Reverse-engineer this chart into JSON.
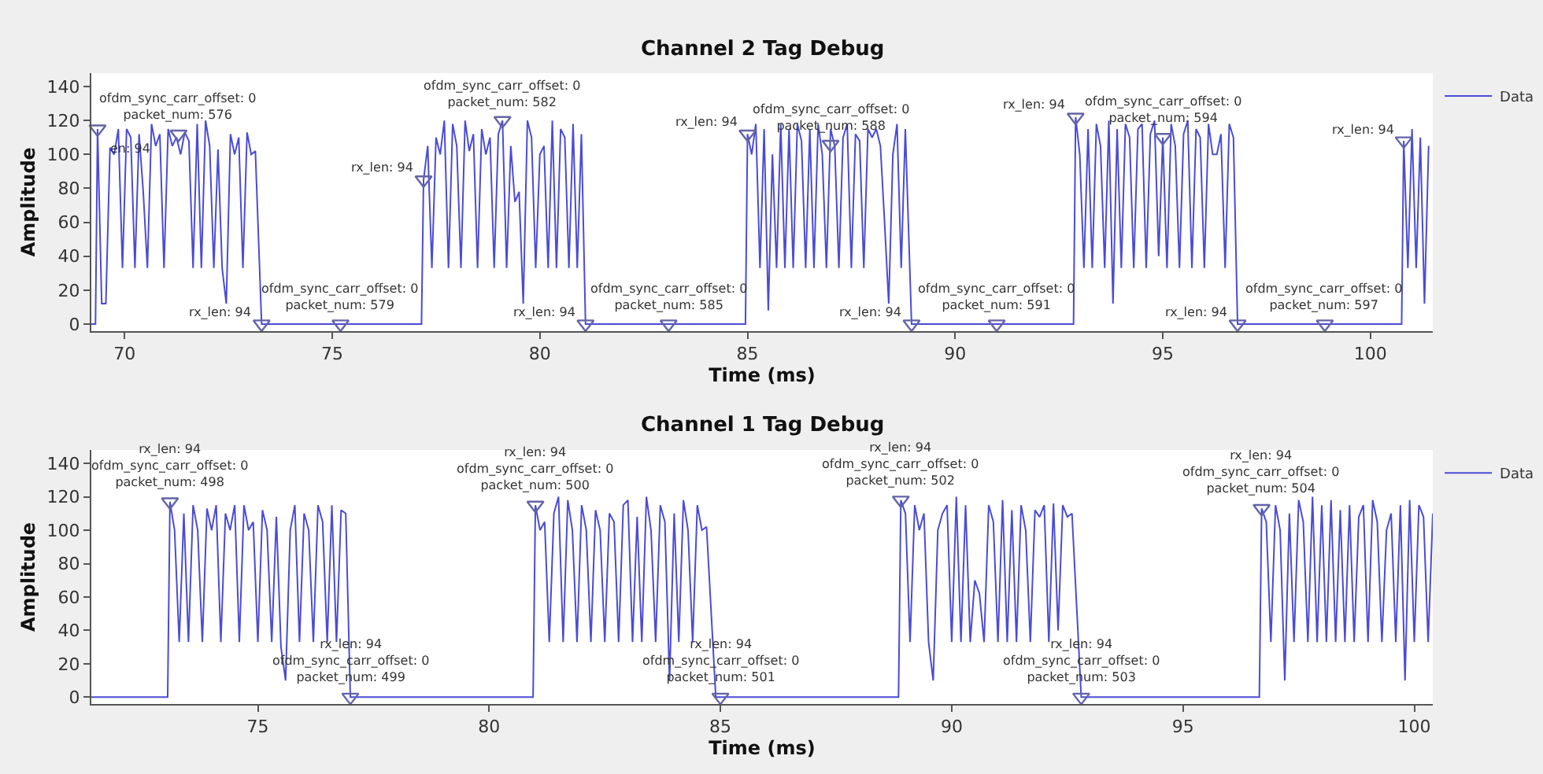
{
  "chart_data": [
    {
      "type": "line",
      "title": "Channel 2 Tag Debug",
      "xlabel": "Time (ms)",
      "ylabel": "Amplitude",
      "legend": "top right",
      "xlim": [
        69.2,
        101.5
      ],
      "xticks": [
        70,
        75,
        80,
        85,
        90,
        95,
        100
      ],
      "ylim": [
        -4,
        148
      ],
      "yticks": [
        0,
        20,
        40,
        60,
        80,
        100,
        120,
        140
      ],
      "series": [
        {
          "name": "Data",
          "color": "#4b4bd6",
          "x": [
            69.2,
            69.3,
            69.35,
            69.45,
            69.55,
            69.65,
            69.75,
            69.85,
            69.95,
            70.05,
            70.15,
            70.25,
            70.35,
            70.45,
            70.55,
            70.65,
            70.75,
            70.85,
            70.95,
            71.05,
            71.15,
            71.25,
            71.35,
            71.45,
            71.55,
            71.65,
            71.75,
            71.85,
            71.95,
            72.05,
            72.15,
            72.25,
            72.35,
            72.45,
            72.55,
            72.65,
            72.75,
            72.85,
            72.95,
            73.05,
            73.15,
            73.3,
            77.15,
            77.2,
            77.3,
            77.4,
            77.5,
            77.6,
            77.7,
            77.8,
            77.9,
            78.0,
            78.1,
            78.2,
            78.3,
            78.4,
            78.5,
            78.6,
            78.7,
            78.8,
            78.9,
            79.0,
            79.1,
            79.2,
            79.3,
            79.4,
            79.5,
            79.6,
            79.7,
            79.8,
            79.9,
            80.0,
            80.1,
            80.2,
            80.3,
            80.4,
            80.5,
            80.6,
            80.7,
            80.8,
            80.9,
            81.0,
            81.1,
            84.95,
            85.0,
            85.1,
            85.2,
            85.3,
            85.4,
            85.5,
            85.6,
            85.7,
            85.8,
            85.9,
            86.0,
            86.1,
            86.2,
            86.3,
            86.4,
            86.5,
            86.6,
            86.7,
            86.8,
            86.9,
            87.0,
            87.1,
            87.2,
            87.3,
            87.4,
            87.5,
            87.6,
            87.7,
            87.8,
            87.9,
            88.0,
            88.1,
            88.2,
            88.3,
            88.4,
            88.5,
            88.6,
            88.7,
            88.8,
            88.95,
            92.85,
            92.9,
            93.0,
            93.1,
            93.2,
            93.3,
            93.4,
            93.5,
            93.6,
            93.7,
            93.8,
            93.9,
            94.0,
            94.1,
            94.2,
            94.3,
            94.4,
            94.5,
            94.6,
            94.7,
            94.8,
            94.9,
            95.0,
            95.1,
            95.2,
            95.3,
            95.4,
            95.5,
            95.6,
            95.7,
            95.8,
            95.9,
            96.0,
            96.1,
            96.2,
            96.3,
            96.4,
            96.5,
            96.6,
            96.7,
            96.8,
            100.75,
            100.8,
            100.9,
            101.0,
            101.1,
            101.2,
            101.3,
            101.4
          ],
          "values": [
            0,
            0,
            115,
            12,
            12,
            104,
            100,
            115,
            33,
            115,
            110,
            33,
            112,
            78,
            33,
            118,
            105,
            112,
            33,
            115,
            105,
            110,
            100,
            113,
            108,
            33,
            118,
            33,
            120,
            105,
            33,
            103,
            33,
            12,
            112,
            100,
            110,
            33,
            113,
            100,
            102,
            0,
            0,
            85,
            105,
            33,
            110,
            100,
            120,
            33,
            118,
            105,
            33,
            120,
            102,
            112,
            33,
            115,
            100,
            110,
            33,
            112,
            120,
            33,
            105,
            72,
            78,
            12,
            120,
            110,
            33,
            100,
            105,
            33,
            120,
            33,
            115,
            110,
            33,
            118,
            33,
            112,
            0,
            0,
            112,
            100,
            118,
            33,
            115,
            8,
            100,
            33,
            118,
            33,
            115,
            33,
            118,
            108,
            33,
            115,
            33,
            118,
            100,
            33,
            115,
            105,
            33,
            110,
            118,
            33,
            112,
            108,
            33,
            115,
            110,
            115,
            105,
            60,
            12,
            100,
            118,
            33,
            115,
            0,
            0,
            122,
            100,
            33,
            115,
            33,
            118,
            105,
            33,
            120,
            12,
            115,
            33,
            118,
            110,
            33,
            115,
            118,
            33,
            112,
            120,
            40,
            110,
            33,
            118,
            105,
            33,
            112,
            120,
            33,
            115,
            110,
            33,
            118,
            100,
            100,
            112,
            33,
            118,
            110,
            0,
            0,
            108,
            33,
            115,
            33,
            110,
            12,
            105
          ]
        },
        {
          "type": "scatter",
          "marker": "triangle",
          "color": "#6464a8",
          "x": [
            69.35,
            71.3,
            73.3,
            75.2,
            77.2,
            79.1,
            81.1,
            83.1,
            85.0,
            87.0,
            88.95,
            91.0,
            92.9,
            95.0,
            96.8,
            98.9,
            100.8
          ],
          "values": [
            115,
            112,
            0,
            0,
            85,
            120,
            0,
            0,
            112,
            106,
            0,
            0,
            122,
            110,
            0,
            0,
            108
          ]
        }
      ],
      "annotations": [
        {
          "text": "en: 94",
          "x": 69.35,
          "y": 115
        },
        {
          "text": "ofdm_sync_carr_offset: 0\npacket_num: 576",
          "x": 71.3,
          "y": 112
        },
        {
          "text": "rx_len: 94",
          "x": 73.3,
          "y": 0
        },
        {
          "text": "ofdm_sync_carr_offset: 0\npacket_num: 579",
          "x": 75.2,
          "y": 0
        },
        {
          "text": "rx_len: 94",
          "x": 77.2,
          "y": 85
        },
        {
          "text": "ofdm_sync_carr_offset: 0\npacket_num: 582",
          "x": 79.1,
          "y": 120
        },
        {
          "text": "rx_len: 94",
          "x": 81.1,
          "y": 0
        },
        {
          "text": "ofdm_sync_carr_offset: 0\npacket_num: 585",
          "x": 83.1,
          "y": 0
        },
        {
          "text": "rx_len: 94",
          "x": 85.0,
          "y": 112
        },
        {
          "text": "ofdm_sync_carr_offset: 0\npacket_num: 588",
          "x": 87.0,
          "y": 106
        },
        {
          "text": "rx_len: 94",
          "x": 88.95,
          "y": 0
        },
        {
          "text": "ofdm_sync_carr_offset: 0\npacket_num: 591",
          "x": 91.0,
          "y": 0
        },
        {
          "text": "rx_len: 94",
          "x": 92.9,
          "y": 122
        },
        {
          "text": "ofdm_sync_carr_offset: 0\npacket_num: 594",
          "x": 95.0,
          "y": 110
        },
        {
          "text": "rx_len: 94",
          "x": 96.8,
          "y": 0
        },
        {
          "text": "ofdm_sync_carr_offset: 0\npacket_num: 597",
          "x": 98.9,
          "y": 0
        },
        {
          "text": "rx_len: 94",
          "x": 100.8,
          "y": 108
        }
      ]
    },
    {
      "type": "line",
      "title": "Channel 1 Tag Debug",
      "xlabel": "Time (ms)",
      "ylabel": "Amplitude",
      "legend": "top right",
      "xlim": [
        71.4,
        100.4
      ],
      "xticks": [
        75,
        80,
        85,
        90,
        95,
        100
      ],
      "ylim": [
        -4,
        148
      ],
      "yticks": [
        0,
        20,
        40,
        60,
        80,
        100,
        120,
        140
      ],
      "series": [
        {
          "name": "Data",
          "color": "#4b4bd6",
          "x": [
            71.4,
            73.05,
            73.1,
            73.2,
            73.3,
            73.4,
            73.5,
            73.6,
            73.7,
            73.8,
            73.9,
            74.0,
            74.1,
            74.2,
            74.3,
            74.4,
            74.5,
            74.6,
            74.7,
            74.8,
            74.9,
            75.0,
            75.1,
            75.2,
            75.3,
            75.4,
            75.5,
            75.6,
            75.7,
            75.8,
            75.9,
            76.0,
            76.1,
            76.2,
            76.3,
            76.4,
            76.5,
            76.6,
            76.7,
            76.8,
            76.9,
            77.0,
            80.95,
            81.0,
            81.1,
            81.2,
            81.3,
            81.4,
            81.5,
            81.6,
            81.7,
            81.8,
            81.9,
            82.0,
            82.1,
            82.2,
            82.3,
            82.4,
            82.5,
            82.6,
            82.7,
            82.8,
            82.9,
            83.0,
            83.1,
            83.2,
            83.3,
            83.4,
            83.5,
            83.6,
            83.7,
            83.8,
            83.9,
            84.0,
            84.1,
            84.2,
            84.3,
            84.4,
            84.5,
            84.6,
            84.7,
            84.9,
            88.85,
            88.9,
            89.0,
            89.1,
            89.2,
            89.3,
            89.4,
            89.5,
            89.6,
            89.7,
            89.8,
            89.9,
            90.0,
            90.1,
            90.2,
            90.3,
            90.4,
            90.5,
            90.6,
            90.7,
            90.8,
            90.9,
            91.0,
            91.1,
            91.2,
            91.3,
            91.4,
            91.5,
            91.6,
            91.7,
            91.8,
            91.9,
            92.0,
            92.1,
            92.2,
            92.3,
            92.4,
            92.5,
            92.6,
            92.8,
            96.65,
            96.7,
            96.8,
            96.9,
            97.0,
            97.1,
            97.2,
            97.3,
            97.4,
            97.5,
            97.6,
            97.7,
            97.8,
            97.9,
            98.0,
            98.1,
            98.2,
            98.3,
            98.4,
            98.5,
            98.6,
            98.7,
            98.8,
            98.9,
            99.0,
            99.1,
            99.2,
            99.3,
            99.4,
            99.5,
            99.6,
            99.7,
            99.8,
            99.9,
            100.0,
            100.1,
            100.2,
            100.3,
            100.4
          ],
          "values": [
            0,
            0,
            117,
            100,
            33,
            110,
            33,
            115,
            100,
            33,
            113,
            100,
            115,
            33,
            110,
            100,
            115,
            33,
            115,
            100,
            105,
            33,
            112,
            100,
            33,
            108,
            30,
            10,
            100,
            115,
            33,
            110,
            100,
            33,
            115,
            105,
            33,
            115,
            33,
            112,
            110,
            0,
            0,
            115,
            100,
            105,
            33,
            110,
            120,
            33,
            118,
            100,
            33,
            115,
            100,
            33,
            112,
            100,
            33,
            110,
            105,
            33,
            115,
            118,
            33,
            108,
            33,
            120,
            100,
            33,
            115,
            105,
            10,
            110,
            33,
            118,
            100,
            33,
            115,
            100,
            102,
            0,
            0,
            118,
            110,
            33,
            115,
            100,
            110,
            33,
            10,
            100,
            110,
            115,
            33,
            120,
            33,
            115,
            33,
            70,
            62,
            33,
            115,
            105,
            33,
            118,
            33,
            112,
            33,
            115,
            100,
            33,
            112,
            108,
            115,
            33,
            116,
            40,
            115,
            108,
            110,
            0,
            0,
            113,
            105,
            33,
            115,
            100,
            10,
            110,
            33,
            118,
            105,
            33,
            120,
            33,
            115,
            33,
            118,
            33,
            112,
            33,
            115,
            33,
            108,
            115,
            33,
            118,
            105,
            33,
            100,
            110,
            33,
            115,
            10,
            118,
            33,
            115,
            108,
            33,
            110
          ]
        },
        {
          "type": "scatter",
          "marker": "triangle",
          "color": "#6464a8",
          "x": [
            73.1,
            77.0,
            81.0,
            85.0,
            88.9,
            92.8,
            96.7
          ],
          "values": [
            117,
            0,
            115,
            0,
            118,
            0,
            113
          ]
        }
      ],
      "annotations": [
        {
          "text": "rx_len: 94\nofdm_sync_carr_offset: 0\npacket_num: 498",
          "x": 73.1,
          "y": 117
        },
        {
          "text": "rx_len: 94\nofdm_sync_carr_offset: 0\npacket_num: 499",
          "x": 77.0,
          "y": 0
        },
        {
          "text": "rx_len: 94\nofdm_sync_carr_offset: 0\npacket_num: 500",
          "x": 81.0,
          "y": 115
        },
        {
          "text": "rx_len: 94\nofdm_sync_carr_offset: 0\npacket_num: 501",
          "x": 85.0,
          "y": 0
        },
        {
          "text": "rx_len: 94\nofdm_sync_carr_offset: 0\npacket_num: 502",
          "x": 88.9,
          "y": 118
        },
        {
          "text": "rx_len: 94\nofdm_sync_carr_offset: 0\npacket_num: 503",
          "x": 92.8,
          "y": 0
        },
        {
          "text": "rx_len: 94\nofdm_sync_carr_offset: 0\npacket_num: 504",
          "x": 96.7,
          "y": 113
        }
      ]
    }
  ]
}
